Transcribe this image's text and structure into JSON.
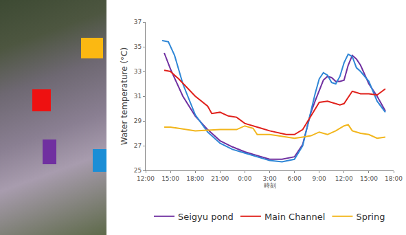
{
  "chart_data": {
    "type": "line",
    "x_label": "時刻",
    "y_label": "Water temperature (°C)",
    "xlim": [
      12,
      42
    ],
    "xticks": [
      {
        "value": 12,
        "label": "12:00"
      },
      {
        "value": 15,
        "label": "15:00"
      },
      {
        "value": 18,
        "label": "18:00"
      },
      {
        "value": 21,
        "label": "21:00"
      },
      {
        "value": 24,
        "label": "0:00"
      },
      {
        "value": 27,
        "label": "3:00"
      },
      {
        "value": 30,
        "label": "6:00"
      },
      {
        "value": 33,
        "label": "9:00"
      },
      {
        "value": 36,
        "label": "12:00"
      },
      {
        "value": 39,
        "label": "15:00"
      },
      {
        "value": 42,
        "label": "18:00"
      }
    ],
    "ylim": [
      25,
      37
    ],
    "yticks": [
      25,
      27,
      29,
      31,
      33,
      35,
      37
    ],
    "grid": false,
    "legend": "bottom",
    "series": [
      {
        "name": "Seigyu pond",
        "color": "#7030a0",
        "x": [
          14.25,
          15,
          16.5,
          18,
          19.5,
          21,
          22.5,
          24,
          25.5,
          27,
          28.5,
          30,
          31,
          32,
          32.5,
          33,
          33.5,
          34,
          34.5,
          35,
          35.5,
          36,
          36.5,
          37,
          37.5,
          38,
          39,
          40,
          41
        ],
        "values": [
          34.5,
          33.2,
          31.0,
          29.4,
          28.3,
          27.4,
          26.9,
          26.5,
          26.2,
          25.9,
          25.9,
          26.1,
          27.1,
          29.7,
          30.6,
          31.5,
          32.3,
          32.6,
          32.5,
          32.2,
          32.2,
          32.3,
          33.5,
          34.3,
          34.0,
          33.5,
          32.0,
          31.0,
          29.8
        ]
      },
      {
        "color": "#2e86d6",
        "x": [
          14.0,
          14.75,
          15.5,
          16.5,
          18,
          19.5,
          21,
          22.5,
          24,
          25.5,
          27,
          28.5,
          30,
          31,
          32,
          32.5,
          33,
          33.5,
          34,
          34.5,
          35,
          35.5,
          36,
          36.5,
          37,
          37.5,
          38,
          39,
          40,
          41
        ],
        "values": [
          35.5,
          35.4,
          34.3,
          32.0,
          29.5,
          28.1,
          27.2,
          26.7,
          26.4,
          26.1,
          25.8,
          25.7,
          25.9,
          27.0,
          29.9,
          31.2,
          32.4,
          32.9,
          32.7,
          32.1,
          32.0,
          32.6,
          33.7,
          34.4,
          34.2,
          33.3,
          33.0,
          32.2,
          30.6,
          29.7
        ]
      },
      {
        "name": "Main Channel",
        "color": "#e0201b",
        "x": [
          14.25,
          15,
          16,
          18,
          19.5,
          20,
          21,
          22,
          23,
          24,
          26,
          27,
          29,
          30,
          31,
          32,
          33,
          34,
          35,
          35.5,
          36,
          37,
          38,
          39,
          40,
          41
        ],
        "values": [
          33.1,
          33.0,
          32.4,
          31.0,
          30.2,
          29.6,
          29.7,
          29.4,
          29.3,
          28.8,
          28.4,
          28.2,
          27.9,
          27.9,
          28.3,
          29.4,
          30.5,
          30.6,
          30.4,
          30.3,
          30.4,
          31.4,
          31.2,
          31.2,
          31.1,
          31.6
        ]
      },
      {
        "name": "Spring",
        "color": "#f2b61c",
        "x": [
          14.25,
          15,
          16,
          18,
          21,
          23,
          24,
          25,
          25.5,
          27,
          28,
          29,
          30,
          31,
          32,
          33,
          34,
          35,
          36,
          36.5,
          37,
          38,
          39,
          40,
          41
        ],
        "values": [
          28.5,
          28.5,
          28.4,
          28.2,
          28.3,
          28.3,
          28.6,
          28.4,
          27.9,
          27.9,
          27.8,
          27.7,
          27.6,
          27.7,
          27.8,
          28.1,
          27.9,
          28.2,
          28.6,
          28.7,
          28.2,
          28.0,
          27.9,
          27.6,
          27.7
        ]
      }
    ]
  }
}
